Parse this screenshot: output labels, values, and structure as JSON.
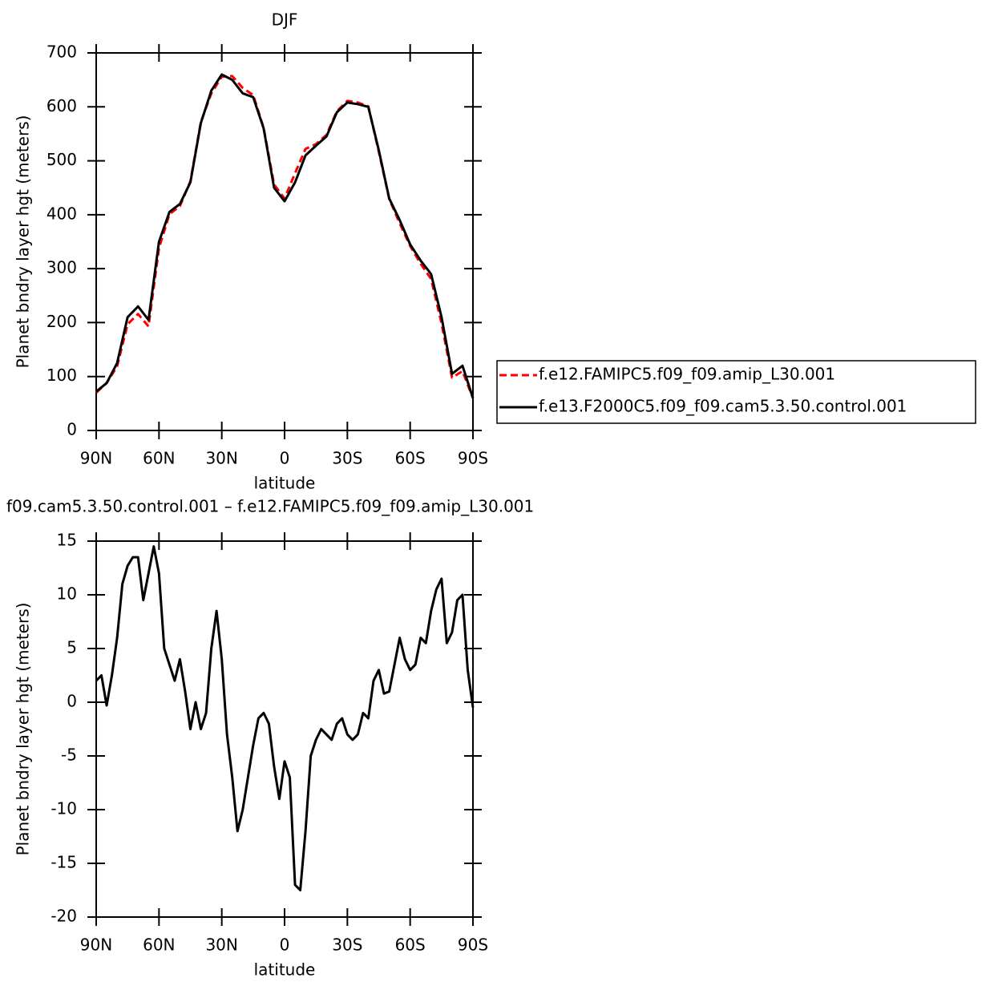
{
  "chart_data": [
    {
      "type": "line",
      "title": "DJF",
      "xlabel": "latitude",
      "ylabel": "Planet bndry layer hgt (meters)",
      "x": [
        90,
        85,
        80,
        75,
        70,
        65,
        60,
        55,
        50,
        45,
        40,
        35,
        30,
        25,
        20,
        15,
        10,
        5,
        0,
        -5,
        -10,
        -15,
        -20,
        -25,
        -30,
        -35,
        -40,
        -45,
        -50,
        -55,
        -60,
        -65,
        -70,
        -75,
        -80,
        -85,
        -90
      ],
      "xlim": [
        90,
        -90
      ],
      "xticks": [
        {
          "value": 90,
          "label": "90N"
        },
        {
          "value": 60,
          "label": "60N"
        },
        {
          "value": 30,
          "label": "30N"
        },
        0,
        {
          "value": -30,
          "label": "30S"
        },
        {
          "value": -60,
          "label": "60S"
        },
        {
          "value": -90,
          "label": "90S"
        }
      ],
      "ylim": [
        0,
        700
      ],
      "yticks": [
        0,
        100,
        200,
        300,
        400,
        500,
        600,
        700
      ],
      "legend": "right",
      "series": [
        {
          "name": "f.e12.FAMIPC5.f09_f09.amip_L30.001",
          "color": "#ff0000",
          "dashed": true,
          "values": [
            70,
            88,
            119,
            197,
            216,
            193,
            338,
            401,
            416,
            462,
            572,
            625,
            656,
            657,
            635,
            622,
            561,
            456,
            430,
            477,
            522,
            531,
            548,
            592,
            611,
            608,
            601,
            517,
            429,
            384,
            342,
            309,
            281,
            198,
            98,
            110,
            60
          ]
        },
        {
          "name": "f.e13.F2000C5.f09_f09.cam5.3.50.control.001",
          "color": "#000000",
          "dashed": false,
          "values": [
            72,
            88,
            125,
            210,
            230,
            205,
            350,
            405,
            420,
            460,
            570,
            630,
            660,
            650,
            625,
            618,
            560,
            450,
            425,
            460,
            510,
            528,
            545,
            590,
            608,
            605,
            600,
            520,
            430,
            390,
            345,
            315,
            290,
            210,
            105,
            120,
            60
          ]
        }
      ]
    },
    {
      "type": "line",
      "title": "f09.cam5.3.50.control.001 – f.e12.FAMIPC5.f09_f09.amip_L30.001",
      "xlabel": "latitude",
      "ylabel": "Planet bndry layer hgt (meters)",
      "x": [
        90,
        87.5,
        85,
        82.5,
        80,
        77.5,
        75,
        72.5,
        70,
        67.5,
        65,
        62.5,
        60,
        57.5,
        55,
        52.5,
        50,
        47.5,
        45,
        42.5,
        40,
        37.5,
        35,
        32.5,
        30,
        27.5,
        25,
        22.5,
        20,
        17.5,
        15,
        12.5,
        10,
        7.5,
        5,
        2.5,
        0,
        -2.5,
        -5,
        -7.5,
        -10,
        -12.5,
        -15,
        -17.5,
        -20,
        -22.5,
        -25,
        -27.5,
        -30,
        -32.5,
        -35,
        -37.5,
        -40,
        -42.5,
        -45,
        -47.5,
        -50,
        -52.5,
        -55,
        -57.5,
        -60,
        -62.5,
        -65,
        -67.5,
        -70,
        -72.5,
        -75,
        -77.5,
        -80,
        -82.5,
        -85,
        -87.5,
        -90
      ],
      "xlim": [
        90,
        -90
      ],
      "xticks": [
        {
          "value": 90,
          "label": "90N"
        },
        {
          "value": 60,
          "label": "60N"
        },
        {
          "value": 30,
          "label": "30N"
        },
        0,
        {
          "value": -30,
          "label": "30S"
        },
        {
          "value": -60,
          "label": "60S"
        },
        {
          "value": -90,
          "label": "90S"
        }
      ],
      "ylim": [
        -20,
        15
      ],
      "yticks": [
        -20,
        -15,
        -10,
        -5,
        0,
        5,
        10,
        15
      ],
      "series": [
        {
          "color": "#000000",
          "dashed": false,
          "values": [
            2,
            2.5,
            -0.3,
            2.5,
            6,
            11,
            12.7,
            13.5,
            13.5,
            9.5,
            12,
            14.5,
            12,
            5,
            3.5,
            2,
            4,
            1,
            -2.5,
            0,
            -2.5,
            -1,
            5,
            8.5,
            4,
            -3,
            -7,
            -12,
            -10,
            -7,
            -4,
            -1.5,
            -1,
            -2,
            -6,
            -9,
            -5.5,
            -7,
            -17,
            -17.5,
            -12,
            -5,
            -3.5,
            -2.5,
            -3,
            -3.5,
            -2,
            -1.5,
            -3,
            -3.5,
            -3,
            -1,
            -1.5,
            2,
            3,
            0.8,
            1,
            3.5,
            6,
            4,
            3,
            3.5,
            6,
            5.5,
            8.5,
            10.5,
            11.5,
            5.5,
            6.5,
            9.5,
            10,
            3,
            -0.5
          ]
        }
      ]
    }
  ]
}
